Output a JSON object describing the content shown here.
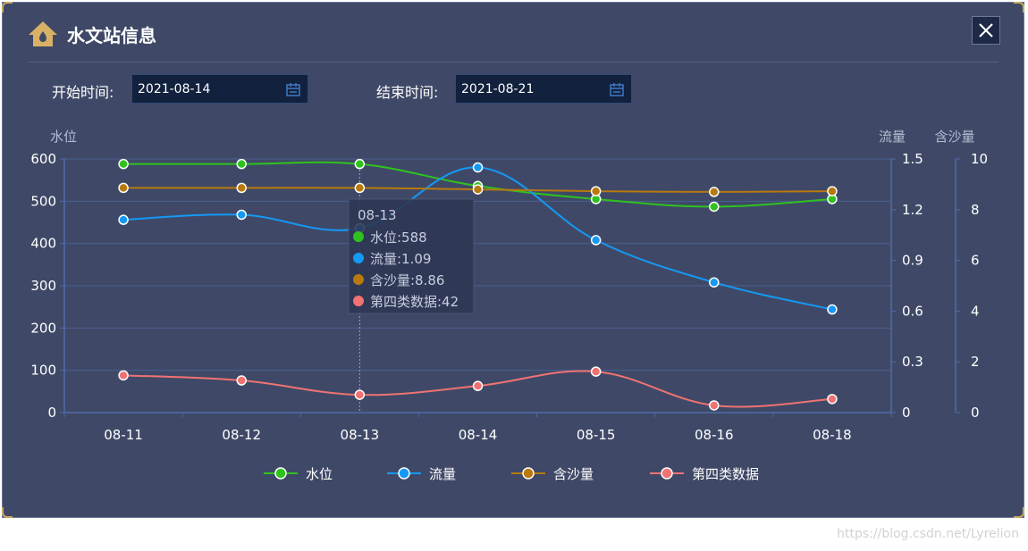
{
  "dialog": {
    "title": "水文站信息",
    "close_icon": "close-icon",
    "title_icon": "house-icon",
    "accent": "#d9b066"
  },
  "filters": {
    "start_label": "开始时间:",
    "start_value": "2021-08-14",
    "end_label": "结束时间:",
    "end_value": "2021-08-21",
    "calendar_icon": "calendar-icon"
  },
  "chart_data": {
    "type": "line",
    "categories": [
      "08-11",
      "08-12",
      "08-13",
      "08-14",
      "08-15",
      "08-16",
      "08-18"
    ],
    "axes": {
      "left": {
        "name": "水位",
        "min": 0,
        "max": 600,
        "ticks": [
          "0",
          "100",
          "200",
          "300",
          "400",
          "500",
          "600"
        ]
      },
      "right1": {
        "name": "流量",
        "min": 0,
        "max": 1.5,
        "ticks": [
          "0",
          "0.3",
          "0.6",
          "0.9",
          "1.2",
          "1.5"
        ]
      },
      "right2": {
        "name": "含沙量",
        "min": 0,
        "max": 10,
        "ticks": [
          "0",
          "2",
          "4",
          "6",
          "8",
          "10"
        ]
      }
    },
    "series": [
      {
        "name": "水位",
        "axis": "left",
        "color": "#2fc21f",
        "values": [
          588,
          588,
          588,
          536,
          505,
          487,
          505
        ]
      },
      {
        "name": "流量",
        "axis": "right1",
        "color": "#1499f5",
        "values": [
          1.14,
          1.17,
          1.09,
          1.45,
          1.02,
          0.77,
          0.61
        ]
      },
      {
        "name": "含沙量",
        "axis": "right2",
        "color": "#b8790e",
        "values": [
          8.86,
          8.86,
          8.86,
          8.8,
          8.73,
          8.7,
          8.73
        ]
      },
      {
        "name": "第四类数据",
        "axis": "left",
        "color": "#f07272",
        "values": [
          88,
          76,
          42,
          63,
          97,
          17,
          32
        ]
      }
    ],
    "grid": true,
    "legend": "bottom-center",
    "tooltip": {
      "category": "08-13",
      "rows": [
        "水位:588",
        "流量:1.09",
        "含沙量:8.86",
        "第四类数据:42"
      ]
    }
  },
  "watermark": "https://blog.csdn.net/Lyrelion"
}
